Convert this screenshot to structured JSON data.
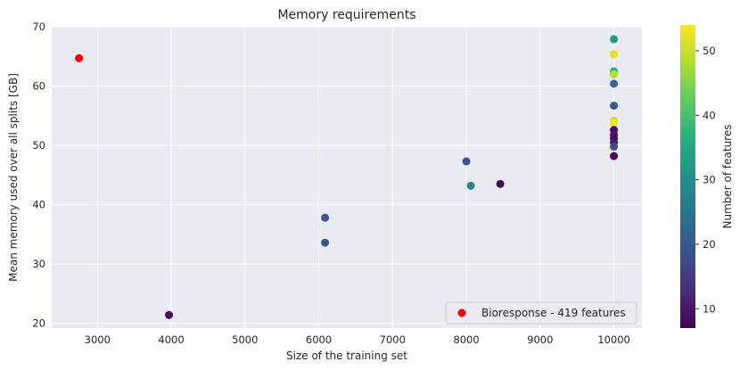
{
  "chart_data": {
    "type": "scatter",
    "title": "Memory requirements",
    "xlabel": "Size of the training set",
    "ylabel": "Mean memory used over all splits [GB]",
    "xlim": [
      2380,
      10380
    ],
    "ylim": [
      19.2,
      70
    ],
    "xticks": [
      3000,
      4000,
      5000,
      6000,
      7000,
      8000,
      9000,
      10000
    ],
    "yticks": [
      20,
      30,
      40,
      50,
      60,
      70
    ],
    "grid": true,
    "legend": {
      "position": "lower-right",
      "label": "Bioresponse - 419 features",
      "color": "#ff0000"
    },
    "colorbar": {
      "label": "Number of features",
      "min": 7,
      "max": 54,
      "ticks": [
        10,
        20,
        30,
        40,
        50
      ],
      "colormap": "viridis"
    },
    "highlight": {
      "x": 2750,
      "y": 64.7,
      "color": "#ff0000"
    },
    "points": [
      {
        "x": 3970,
        "y": 21.4,
        "features": 9
      },
      {
        "x": 6085,
        "y": 37.8,
        "features": 20
      },
      {
        "x": 6085,
        "y": 33.6,
        "features": 20
      },
      {
        "x": 8000,
        "y": 47.3,
        "features": 20
      },
      {
        "x": 8060,
        "y": 43.2,
        "features": 28
      },
      {
        "x": 8460,
        "y": 43.5,
        "features": 8
      },
      {
        "x": 10000,
        "y": 67.9,
        "features": 32
      },
      {
        "x": 10000,
        "y": 65.4,
        "features": 52
      },
      {
        "x": 10000,
        "y": 62.5,
        "features": 36
      },
      {
        "x": 10000,
        "y": 62.0,
        "features": 49
      },
      {
        "x": 10000,
        "y": 60.4,
        "features": 22
      },
      {
        "x": 10000,
        "y": 56.7,
        "features": 20
      },
      {
        "x": 10000,
        "y": 54.2,
        "features": 50
      },
      {
        "x": 10000,
        "y": 53.8,
        "features": 53
      },
      {
        "x": 10000,
        "y": 52.6,
        "features": 9
      },
      {
        "x": 10000,
        "y": 51.8,
        "features": 10
      },
      {
        "x": 10000,
        "y": 51.2,
        "features": 9
      },
      {
        "x": 10000,
        "y": 50.5,
        "features": 10
      },
      {
        "x": 10000,
        "y": 49.8,
        "features": 18
      },
      {
        "x": 10000,
        "y": 48.2,
        "features": 8
      }
    ]
  }
}
